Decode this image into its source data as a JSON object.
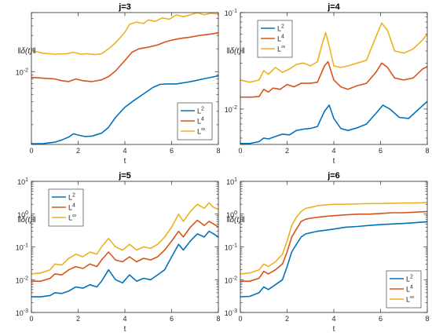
{
  "chart_data": [
    {
      "type": "line",
      "title": "j=3",
      "xlabel": "t",
      "ylabel": "‖δ(t)‖",
      "xlim": [
        0,
        8
      ],
      "xticks": [
        0,
        2,
        4,
        6,
        8
      ],
      "yscale": "log",
      "ylim": [
        0.0011,
        0.06
      ],
      "yticks": [
        {
          "value": 0.01,
          "base": "10",
          "exp": "-2"
        }
      ],
      "legend": {
        "position": "bottom-right"
      },
      "series": [
        {
          "name": "L2",
          "base": "L",
          "sup": "2",
          "color": "#0072BD",
          "x": [
            0,
            0.5,
            1,
            1.3,
            1.6,
            1.8,
            2.0,
            2.3,
            2.6,
            3.0,
            3.3,
            3.6,
            4.0,
            4.4,
            4.8,
            5.2,
            5.5,
            5.8,
            6.2,
            6.6,
            7.0,
            7.5,
            8.0
          ],
          "y": [
            0.00112,
            0.00113,
            0.00118,
            0.00126,
            0.00138,
            0.00152,
            0.00146,
            0.0014,
            0.00142,
            0.00155,
            0.00185,
            0.0025,
            0.0034,
            0.0042,
            0.0051,
            0.0062,
            0.0068,
            0.0069,
            0.0069,
            0.0072,
            0.0076,
            0.0082,
            0.0088
          ]
        },
        {
          "name": "L4",
          "base": "L",
          "sup": "4",
          "color": "#D95319",
          "x": [
            0,
            0.5,
            1,
            1.3,
            1.6,
            1.9,
            2.2,
            2.6,
            3.0,
            3.3,
            3.6,
            4.0,
            4.3,
            4.6,
            5.0,
            5.4,
            5.7,
            6.0,
            6.4,
            6.8,
            7.2,
            7.6,
            8.0
          ],
          "y": [
            0.0084,
            0.0082,
            0.008,
            0.0076,
            0.0074,
            0.008,
            0.0076,
            0.0074,
            0.0078,
            0.0086,
            0.0102,
            0.014,
            0.018,
            0.02,
            0.021,
            0.0225,
            0.0245,
            0.026,
            0.0275,
            0.0285,
            0.03,
            0.031,
            0.0325
          ]
        },
        {
          "name": "L∞",
          "base": "L",
          "sup": "∞",
          "color": "#EDB120",
          "x": [
            0,
            0.5,
            1,
            1.5,
            1.8,
            2.1,
            2.4,
            2.7,
            3.0,
            3.3,
            3.6,
            4.0,
            4.2,
            4.5,
            4.8,
            5.0,
            5.3,
            5.6,
            5.9,
            6.2,
            6.5,
            6.8,
            7.1,
            7.4,
            7.7,
            8.0
          ],
          "y": [
            0.019,
            0.0175,
            0.017,
            0.0172,
            0.018,
            0.017,
            0.0172,
            0.0168,
            0.0172,
            0.02,
            0.024,
            0.033,
            0.042,
            0.045,
            0.043,
            0.048,
            0.046,
            0.051,
            0.049,
            0.056,
            0.053,
            0.056,
            0.06,
            0.056,
            0.059,
            0.057
          ]
        }
      ]
    },
    {
      "type": "line",
      "title": "j=4",
      "xlabel": "t",
      "ylabel": "‖δ(t)‖",
      "xlim": [
        0,
        8
      ],
      "xticks": [
        0,
        2,
        4,
        6,
        8
      ],
      "yscale": "log",
      "ylim": [
        0.0043,
        0.1
      ],
      "yticks": [
        {
          "value": 0.01,
          "base": "10",
          "exp": "-2"
        },
        {
          "value": 0.1,
          "base": "10",
          "exp": "-1"
        }
      ],
      "legend": {
        "position": "top-left"
      },
      "series": [
        {
          "name": "L2",
          "base": "L",
          "sup": "2",
          "color": "#0072BD",
          "x": [
            0,
            0.4,
            0.8,
            1.0,
            1.2,
            1.5,
            1.8,
            2.1,
            2.4,
            2.7,
            3.0,
            3.3,
            3.6,
            3.8,
            4.0,
            4.3,
            4.6,
            5.0,
            5.4,
            5.8,
            6.1,
            6.4,
            6.8,
            7.2,
            7.6,
            8.0
          ],
          "y": [
            0.0044,
            0.0044,
            0.0046,
            0.005,
            0.0049,
            0.0052,
            0.0055,
            0.0054,
            0.006,
            0.0062,
            0.0063,
            0.0066,
            0.0095,
            0.011,
            0.008,
            0.0063,
            0.006,
            0.0064,
            0.007,
            0.009,
            0.011,
            0.01,
            0.0082,
            0.008,
            0.0098,
            0.012
          ]
        },
        {
          "name": "L4",
          "base": "L",
          "sup": "4",
          "color": "#D95319",
          "x": [
            0,
            0.5,
            0.8,
            1.0,
            1.2,
            1.4,
            1.7,
            2.0,
            2.3,
            2.6,
            3.0,
            3.3,
            3.6,
            3.75,
            4.0,
            4.3,
            4.6,
            5.0,
            5.4,
            5.8,
            6.05,
            6.3,
            6.6,
            7.0,
            7.4,
            7.8,
            8.0
          ],
          "y": [
            0.0133,
            0.0133,
            0.0135,
            0.016,
            0.015,
            0.0165,
            0.016,
            0.018,
            0.017,
            0.0185,
            0.0185,
            0.019,
            0.028,
            0.031,
            0.02,
            0.017,
            0.016,
            0.0175,
            0.0185,
            0.024,
            0.03,
            0.027,
            0.021,
            0.02,
            0.021,
            0.026,
            0.0275
          ]
        },
        {
          "name": "L∞",
          "base": "L",
          "sup": "∞",
          "color": "#EDB120",
          "x": [
            0,
            0.4,
            0.8,
            1.0,
            1.2,
            1.5,
            1.8,
            2.1,
            2.4,
            2.7,
            3.0,
            3.3,
            3.5,
            3.65,
            3.8,
            4.0,
            4.3,
            4.6,
            5.0,
            5.4,
            5.8,
            6.05,
            6.3,
            6.6,
            7.0,
            7.4,
            7.8,
            8.0
          ],
          "y": [
            0.02,
            0.019,
            0.02,
            0.025,
            0.023,
            0.027,
            0.024,
            0.026,
            0.029,
            0.03,
            0.028,
            0.031,
            0.047,
            0.062,
            0.045,
            0.028,
            0.027,
            0.028,
            0.03,
            0.032,
            0.056,
            0.078,
            0.065,
            0.04,
            0.038,
            0.042,
            0.052,
            0.06
          ]
        }
      ]
    },
    {
      "type": "line",
      "title": "j=5",
      "xlabel": "t",
      "ylabel": "‖δ(t)‖",
      "xlim": [
        0,
        8
      ],
      "xticks": [
        0,
        2,
        4,
        6,
        8
      ],
      "yscale": "log",
      "ylim": [
        0.001,
        10
      ],
      "yticks": [
        {
          "value": 0.001,
          "base": "10",
          "exp": "-3"
        },
        {
          "value": 0.01,
          "base": "10",
          "exp": "-2"
        },
        {
          "value": 0.1,
          "base": "10",
          "exp": "-1"
        },
        {
          "value": 1,
          "base": "10",
          "exp": "0"
        },
        {
          "value": 10,
          "base": "10",
          "exp": "1"
        }
      ],
      "legend": {
        "position": "top-left"
      },
      "series": [
        {
          "name": "L2",
          "base": "L",
          "sup": "2",
          "color": "#0072BD",
          "x": [
            0,
            0.4,
            0.8,
            1.0,
            1.3,
            1.6,
            1.9,
            2.2,
            2.5,
            2.8,
            3.0,
            3.3,
            3.6,
            3.9,
            4.2,
            4.5,
            4.8,
            5.1,
            5.4,
            5.7,
            6.0,
            6.3,
            6.5,
            6.8,
            7.1,
            7.4,
            7.6,
            7.8,
            8.0
          ],
          "y": [
            0.003,
            0.003,
            0.0033,
            0.004,
            0.0038,
            0.0045,
            0.006,
            0.0055,
            0.007,
            0.006,
            0.009,
            0.02,
            0.01,
            0.008,
            0.014,
            0.009,
            0.011,
            0.01,
            0.014,
            0.02,
            0.05,
            0.12,
            0.08,
            0.15,
            0.25,
            0.2,
            0.3,
            0.25,
            0.2
          ]
        },
        {
          "name": "L4",
          "base": "L",
          "sup": "4",
          "color": "#D95319",
          "x": [
            0,
            0.4,
            0.8,
            1.0,
            1.3,
            1.6,
            1.9,
            2.2,
            2.5,
            2.8,
            3.0,
            3.3,
            3.6,
            3.9,
            4.2,
            4.5,
            4.8,
            5.1,
            5.4,
            5.7,
            6.0,
            6.3,
            6.5,
            6.8,
            7.1,
            7.4,
            7.6,
            7.8,
            8.0
          ],
          "y": [
            0.009,
            0.009,
            0.011,
            0.015,
            0.014,
            0.02,
            0.025,
            0.022,
            0.03,
            0.025,
            0.04,
            0.07,
            0.04,
            0.035,
            0.05,
            0.035,
            0.045,
            0.04,
            0.05,
            0.08,
            0.15,
            0.3,
            0.2,
            0.4,
            0.65,
            0.45,
            0.6,
            0.5,
            0.4
          ]
        },
        {
          "name": "L∞",
          "base": "L",
          "sup": "∞",
          "color": "#EDB120",
          "x": [
            0,
            0.4,
            0.8,
            1.0,
            1.3,
            1.6,
            1.9,
            2.2,
            2.5,
            2.8,
            3.0,
            3.3,
            3.6,
            3.9,
            4.2,
            4.5,
            4.8,
            5.1,
            5.4,
            5.7,
            6.0,
            6.3,
            6.5,
            6.8,
            7.1,
            7.4,
            7.6,
            7.8,
            8.0
          ],
          "y": [
            0.015,
            0.016,
            0.02,
            0.03,
            0.028,
            0.045,
            0.06,
            0.05,
            0.07,
            0.06,
            0.1,
            0.18,
            0.1,
            0.08,
            0.12,
            0.08,
            0.1,
            0.09,
            0.12,
            0.2,
            0.4,
            1.0,
            0.6,
            1.2,
            2.0,
            1.5,
            2.2,
            1.6,
            1.4
          ]
        }
      ]
    },
    {
      "type": "line",
      "title": "j=6",
      "xlabel": "t",
      "ylabel": "‖δ(t)‖",
      "xlim": [
        0,
        8
      ],
      "xticks": [
        0,
        2,
        4,
        6,
        8
      ],
      "yscale": "log",
      "ylim": [
        0.001,
        10
      ],
      "yticks": [
        {
          "value": 0.001,
          "base": "10",
          "exp": "-3"
        },
        {
          "value": 0.01,
          "base": "10",
          "exp": "-2"
        },
        {
          "value": 0.1,
          "base": "10",
          "exp": "-1"
        },
        {
          "value": 1,
          "base": "10",
          "exp": "0"
        },
        {
          "value": 10,
          "base": "10",
          "exp": "1"
        }
      ],
      "legend": {
        "position": "bottom-right"
      },
      "series": [
        {
          "name": "L2",
          "base": "L",
          "sup": "2",
          "color": "#0072BD",
          "x": [
            0,
            0.4,
            0.8,
            1.0,
            1.2,
            1.5,
            1.8,
            2.0,
            2.2,
            2.4,
            2.6,
            2.8,
            3.0,
            3.3,
            3.6,
            4.0,
            4.5,
            5.0,
            5.5,
            6.0,
            6.5,
            7.0,
            7.5,
            8.0
          ],
          "y": [
            0.003,
            0.0031,
            0.004,
            0.006,
            0.005,
            0.007,
            0.01,
            0.025,
            0.07,
            0.12,
            0.2,
            0.25,
            0.27,
            0.3,
            0.32,
            0.35,
            0.4,
            0.42,
            0.45,
            0.48,
            0.5,
            0.52,
            0.55,
            0.58
          ]
        },
        {
          "name": "L4",
          "base": "L",
          "sup": "4",
          "color": "#D95319",
          "x": [
            0,
            0.4,
            0.8,
            1.0,
            1.2,
            1.5,
            1.8,
            2.0,
            2.2,
            2.4,
            2.6,
            2.8,
            3.0,
            3.3,
            3.6,
            4.0,
            4.5,
            5.0,
            5.5,
            6.0,
            6.5,
            7.0,
            7.5,
            8.0
          ],
          "y": [
            0.009,
            0.009,
            0.011,
            0.018,
            0.015,
            0.02,
            0.03,
            0.07,
            0.2,
            0.35,
            0.6,
            0.7,
            0.75,
            0.8,
            0.85,
            0.9,
            0.95,
            1.0,
            1.0,
            1.05,
            1.1,
            1.1,
            1.15,
            1.2
          ]
        },
        {
          "name": "L∞",
          "base": "L",
          "sup": "∞",
          "color": "#EDB120",
          "x": [
            0,
            0.4,
            0.8,
            1.0,
            1.2,
            1.5,
            1.8,
            2.0,
            2.2,
            2.4,
            2.6,
            2.8,
            3.0,
            3.3,
            3.6,
            4.0,
            4.5,
            5.0,
            5.5,
            6.0,
            6.5,
            7.0,
            7.5,
            8.0
          ],
          "y": [
            0.015,
            0.016,
            0.02,
            0.03,
            0.025,
            0.035,
            0.06,
            0.15,
            0.45,
            0.8,
            1.2,
            1.5,
            1.6,
            1.8,
            1.9,
            2.0,
            2.0,
            2.05,
            2.1,
            2.1,
            2.15,
            2.2,
            2.2,
            2.25
          ]
        }
      ]
    }
  ]
}
